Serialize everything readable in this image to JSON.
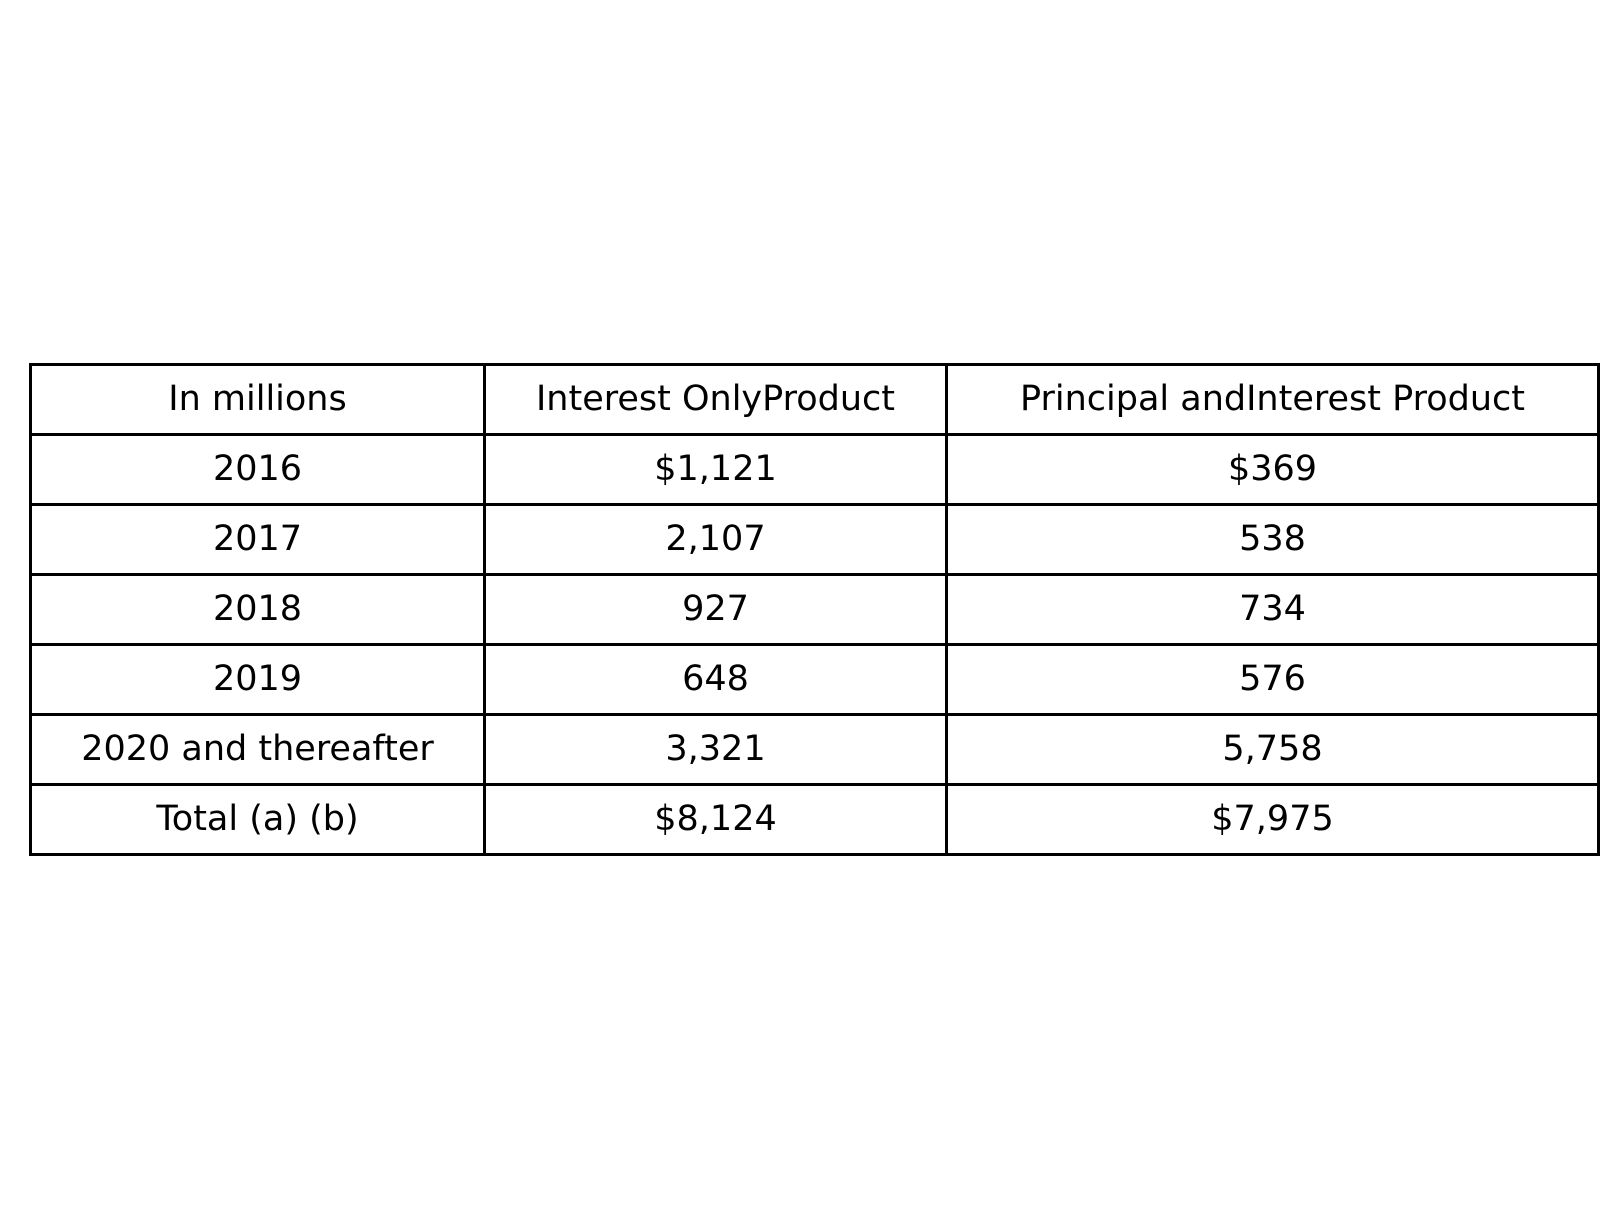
{
  "chart_data": {
    "type": "table",
    "columns": [
      "In millions",
      "Interest OnlyProduct",
      "Principal andInterest Product"
    ],
    "rows": [
      [
        "2016",
        "$1,121",
        "$369"
      ],
      [
        "2017",
        "2,107",
        "538"
      ],
      [
        "2018",
        "927",
        "734"
      ],
      [
        "2019",
        "648",
        "576"
      ],
      [
        "2020 and thereafter",
        "3,321",
        "5,758"
      ],
      [
        "Total (a) (b)",
        "$8,124",
        "$7,975"
      ]
    ]
  }
}
